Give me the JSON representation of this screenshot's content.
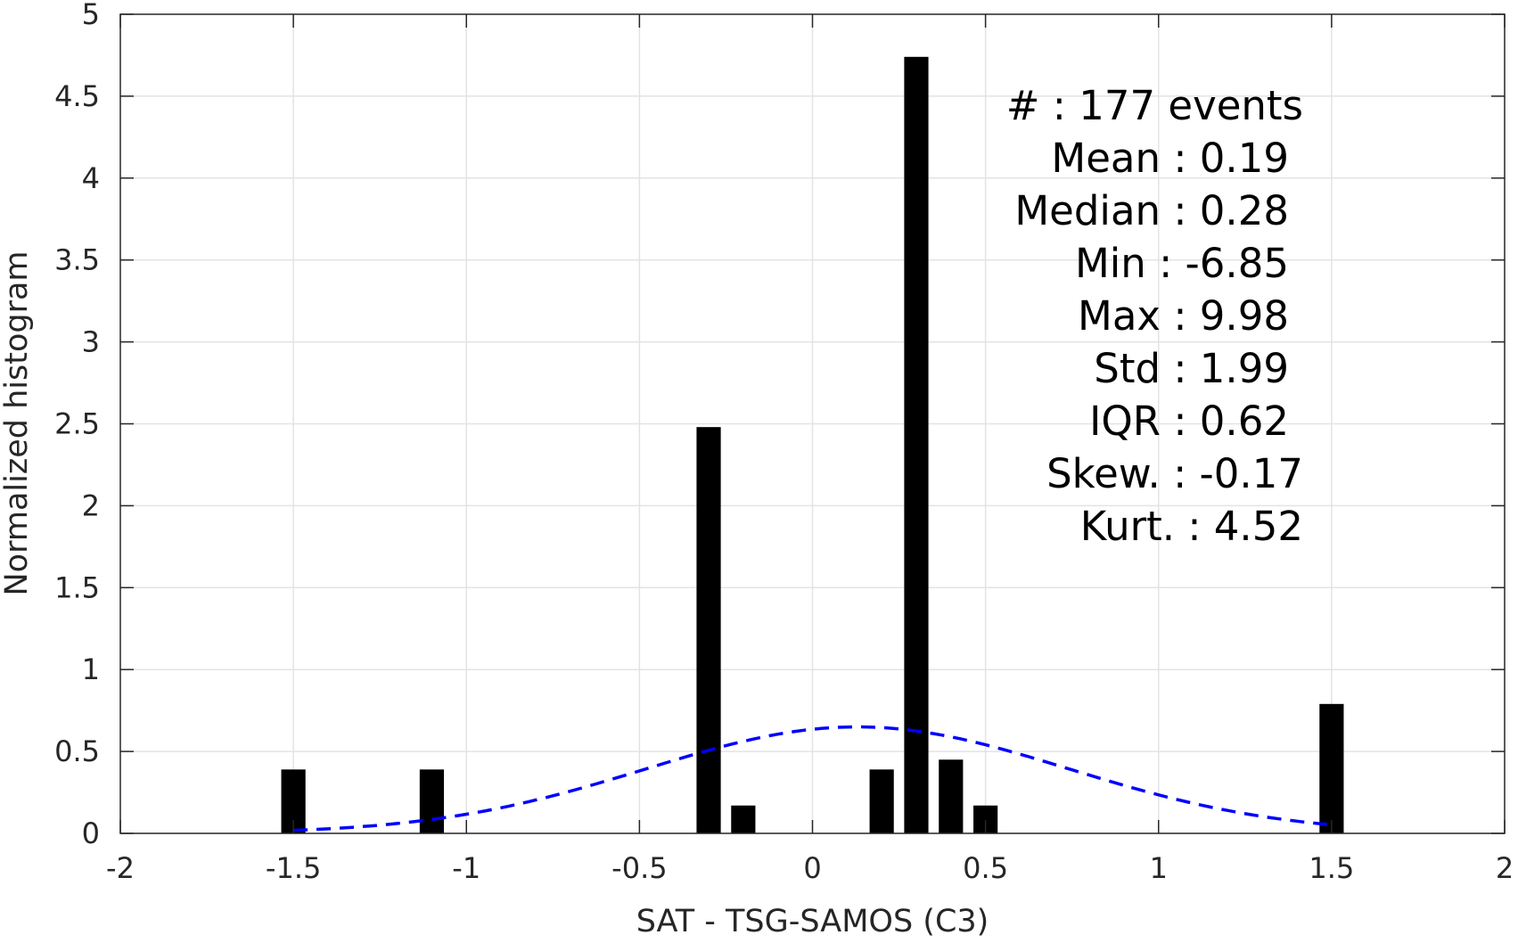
{
  "chart_data": {
    "type": "bar",
    "xlabel": "SAT - TSG-SAMOS (C3)",
    "ylabel": "Normalized histogram",
    "xlim": [
      -2,
      2
    ],
    "ylim": [
      0,
      5
    ],
    "xticks": [
      -2,
      -1.5,
      -1,
      -0.5,
      0,
      0.5,
      1,
      1.5,
      2
    ],
    "xtick_labels": [
      "-2",
      "-1.5",
      "-1",
      "-0.5",
      "0",
      "0.5",
      "1",
      "1.5",
      "2"
    ],
    "yticks": [
      0,
      0.5,
      1,
      1.5,
      2,
      2.5,
      3,
      3.5,
      4,
      4.5,
      5
    ],
    "ytick_labels": [
      "0",
      "0.5",
      "1",
      "1.5",
      "2",
      "2.5",
      "3",
      "3.5",
      "4",
      "4.5",
      "5"
    ],
    "grid": true,
    "bar_color": "#000000",
    "bar_width": 0.07,
    "bars": [
      {
        "x": -1.5,
        "value": 0.39
      },
      {
        "x": -1.1,
        "value": 0.39
      },
      {
        "x": -0.3,
        "value": 2.48
      },
      {
        "x": -0.2,
        "value": 0.17
      },
      {
        "x": 0.2,
        "value": 0.39
      },
      {
        "x": 0.3,
        "value": 4.74
      },
      {
        "x": 0.4,
        "value": 0.45
      },
      {
        "x": 0.5,
        "value": 0.17
      },
      {
        "x": 1.5,
        "value": 0.79
      }
    ],
    "fit_curve": {
      "style": "dashed",
      "color": "#0000ff",
      "mean": 0.13,
      "std": 0.61,
      "peak": 0.65,
      "x_range": [
        -1.5,
        1.5
      ]
    },
    "annotation_lines": [
      "#  : 177 events",
      "Mean : 0.19",
      "Median : 0.28",
      "Min : -6.85",
      "Max : 9.98",
      "Std : 1.99",
      "IQR : 0.62",
      "Skew. : -0.17",
      "Kurt. : 4.52"
    ]
  }
}
